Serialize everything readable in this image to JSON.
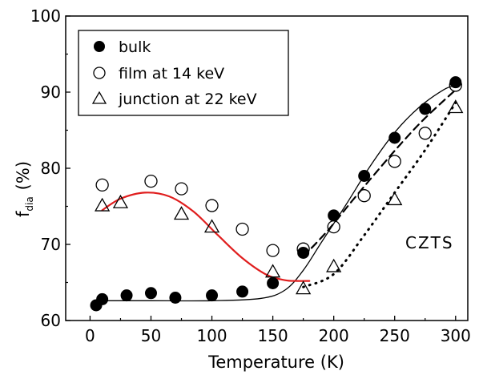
{
  "chart_data": {
    "type": "scatter",
    "xlabel": "Temperature (K)",
    "ylabel_main": "f",
    "ylabel_sub": "dia",
    "ylabel_unit": "(%)",
    "xlim": [
      -20,
      310
    ],
    "ylim": [
      60,
      100
    ],
    "x_ticks": [
      0,
      50,
      100,
      150,
      200,
      250,
      300
    ],
    "y_ticks": [
      60,
      70,
      80,
      90,
      100
    ],
    "annotation": "CZTS",
    "legend_position": "top-left",
    "series": [
      {
        "name": "bulk",
        "marker": "filled-circle",
        "x": [
          5,
          10,
          30,
          50,
          70,
          100,
          125,
          150,
          175,
          200,
          225,
          250,
          275,
          300
        ],
        "y": [
          62.0,
          62.8,
          63.3,
          63.6,
          63.0,
          63.3,
          63.8,
          64.9,
          68.9,
          73.8,
          79.0,
          84.0,
          87.8,
          91.3
        ]
      },
      {
        "name": "film at 14 keV",
        "marker": "open-circle",
        "x": [
          10,
          50,
          75,
          100,
          125,
          150,
          175,
          200,
          225,
          250,
          275,
          300
        ],
        "y": [
          77.8,
          78.3,
          77.3,
          75.1,
          72.0,
          69.2,
          69.4,
          72.3,
          76.4,
          80.9,
          84.6,
          90.9
        ]
      },
      {
        "name": "junction at 22 keV",
        "marker": "open-triangle",
        "x": [
          10,
          25,
          75,
          100,
          150,
          175,
          200,
          250,
          300
        ],
        "y": [
          75.1,
          75.5,
          74.0,
          72.3,
          66.4,
          64.2,
          67.1,
          75.9,
          88.0
        ]
      }
    ],
    "fit_curves": [
      {
        "style": "solid-black",
        "x": [
          10,
          50,
          100,
          140,
          160,
          175,
          190,
          210,
          230,
          250,
          270,
          290,
          300
        ],
        "y": [
          62.6,
          62.6,
          62.6,
          62.9,
          64.0,
          66.6,
          70.3,
          75.2,
          80.3,
          84.7,
          88.0,
          90.3,
          90.9
        ]
      },
      {
        "style": "solid-red",
        "x": [
          10,
          25,
          45,
          65,
          85,
          105,
          125,
          145,
          160,
          170,
          180
        ],
        "y": [
          74.5,
          76.0,
          76.8,
          76.3,
          74.3,
          71.2,
          68.2,
          66.0,
          65.3,
          65.2,
          65.2
        ]
      },
      {
        "style": "dashed-black",
        "x": [
          175,
          195,
          215,
          235,
          255,
          275,
          300
        ],
        "y": [
          68.4,
          71.8,
          75.7,
          79.5,
          83.2,
          86.6,
          90.3
        ]
      },
      {
        "style": "dotted-black",
        "x": [
          175,
          200,
          225,
          250,
          275,
          300
        ],
        "y": [
          64.4,
          66.1,
          71.2,
          76.8,
          82.4,
          88.6
        ]
      }
    ],
    "colors": {
      "axis": "#000000",
      "markers": "#000000",
      "red_fit": "#e01e1e"
    }
  }
}
